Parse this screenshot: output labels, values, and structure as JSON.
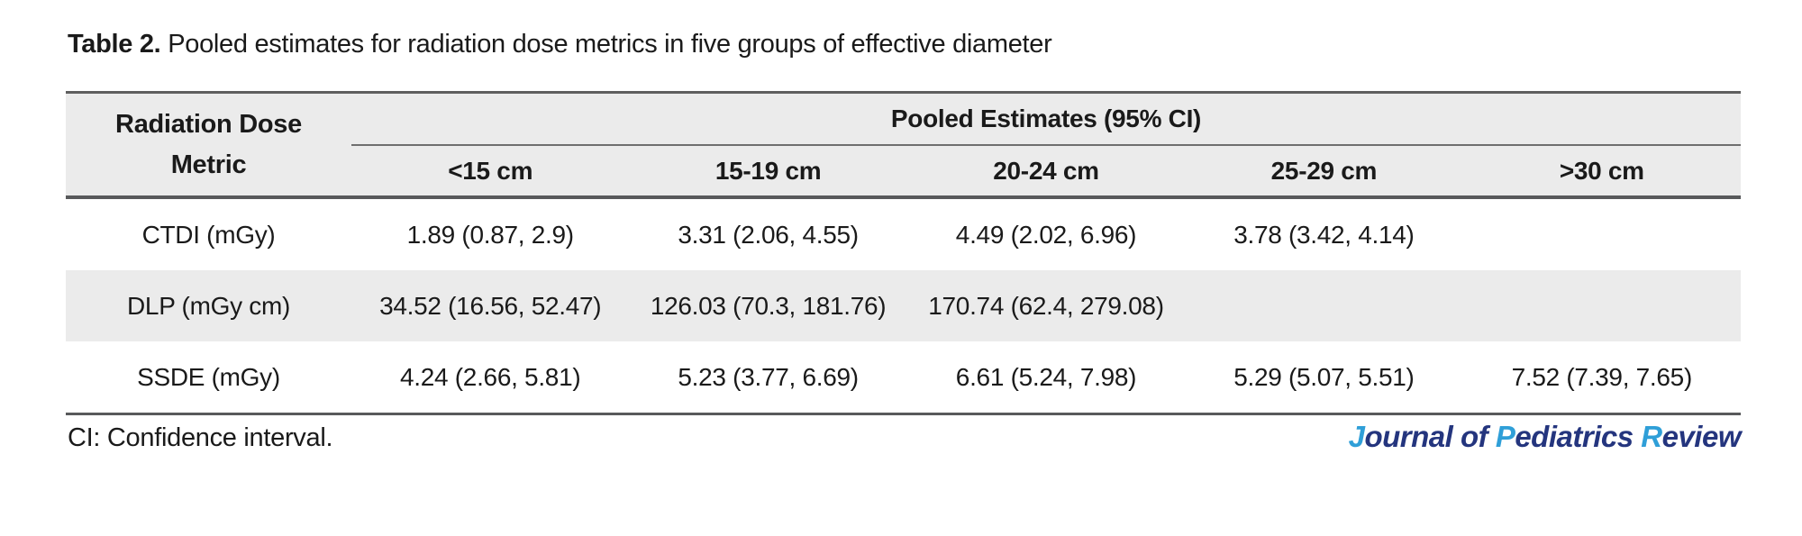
{
  "caption": {
    "label": "Table 2.",
    "text": " Pooled estimates for radiation dose metrics in five groups of effective diameter"
  },
  "table": {
    "header": {
      "metric_label": "Radiation Dose Metric",
      "pooled_label": "Pooled Estimates (95% CI)",
      "group_columns": [
        "<15 cm",
        "15-19 cm",
        "20-24 cm",
        "25-29 cm",
        ">30 cm"
      ]
    },
    "rows": [
      {
        "metric": "CTDI (mGy)",
        "values": [
          "1.89 (0.87, 2.9)",
          "3.31 (2.06, 4.55)",
          "4.49 (2.02, 6.96)",
          "3.78 (3.42, 4.14)",
          ""
        ]
      },
      {
        "metric": "DLP (mGy cm)",
        "values": [
          "34.52 (16.56, 52.47)",
          "126.03 (70.3, 181.76)",
          "170.74 (62.4, 279.08)",
          "",
          ""
        ]
      },
      {
        "metric": "SSDE (mGy)",
        "values": [
          "4.24 (2.66, 5.81)",
          "5.23 (3.77, 6.69)",
          "6.61 (5.24, 7.98)",
          "5.29 (5.07, 5.51)",
          "7.52 (7.39, 7.65)"
        ]
      }
    ]
  },
  "footnote": "CI: Confidence interval.",
  "journal_logo": {
    "segments": [
      {
        "text": "J",
        "tone": "light"
      },
      {
        "text": "ournal of ",
        "tone": "dark"
      },
      {
        "text": "P",
        "tone": "light"
      },
      {
        "text": "ediatrics ",
        "tone": "dark"
      },
      {
        "text": "R",
        "tone": "light"
      },
      {
        "text": "eview",
        "tone": "dark"
      }
    ]
  },
  "colors": {
    "stripe_gray": "#ebebeb",
    "rule_gray": "#58595b",
    "text": "#1a1a1a",
    "logo_light_blue": "#2f9fd8",
    "logo_dark_blue": "#24357e"
  }
}
